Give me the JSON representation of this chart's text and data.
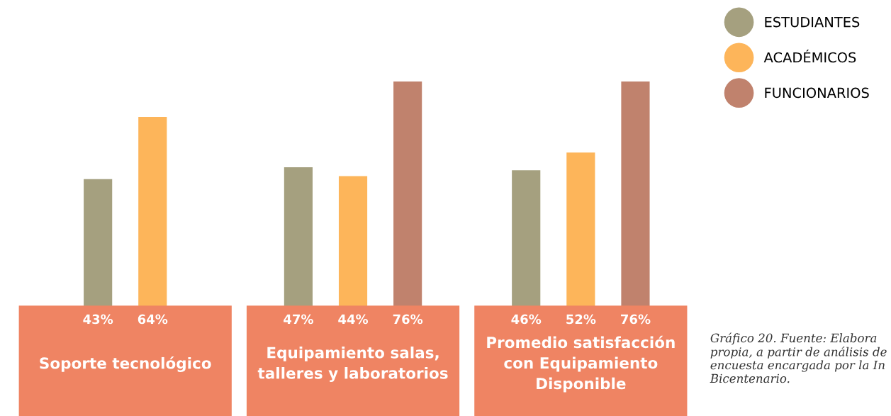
{
  "chart_data": {
    "type": "bar",
    "categories": [
      "Soporte tecnológico",
      "Equipamiento salas,\ntalleres y laboratorios",
      "Promedio satisfacción\ncon Equipamiento\nDisponible"
    ],
    "series": [
      {
        "name": "ESTUDIANTES",
        "color": "#a5a07f",
        "values": [
          43,
          47,
          46
        ],
        "value_labels": [
          "43%",
          "47%",
          "46%"
        ]
      },
      {
        "name": "ACADÉMICOS",
        "color": "#fdb55a",
        "values": [
          64,
          44,
          52
        ],
        "value_labels": [
          "64%",
          "44%",
          "52%"
        ]
      },
      {
        "name": "FUNCIONARIOS",
        "color": "#c0826d",
        "values": [
          null,
          76,
          76
        ],
        "value_labels": [
          null,
          "76%",
          "76%"
        ]
      }
    ],
    "legend": "top right",
    "annotations": [
      "Gráfico 20. Fuente: Elabora propia, a partir de análisis de encuesta encargada por la In Bicentenario."
    ]
  }
}
